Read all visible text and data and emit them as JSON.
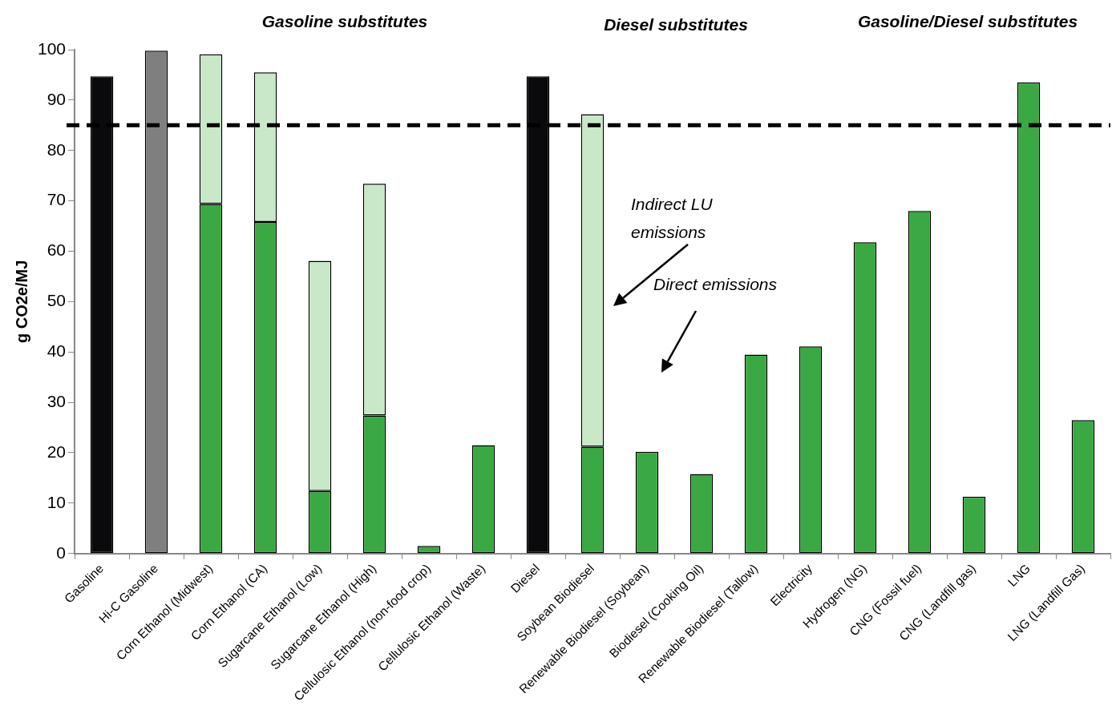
{
  "chart_data": {
    "type": "bar",
    "stacked": true,
    "ylabel": "g CO2e/MJ",
    "categories": [
      "Gasoline",
      "Hi-C Gasoline",
      "Corn Ethanol (Midwest)",
      "Corn Ethanol (CA)",
      "Sugarcane Ethanol (Low)",
      "Sugarcane Ethanol (High)",
      "Cellulosic Ethanol (non-food crop)",
      "Cellulosic Ethanol (Waste)",
      "Diesel",
      "Soybean Biodiesel",
      "Renewable Biodiesel (Soybean)",
      "Biodiesel (Cooking Oil)",
      "Renewable Biodiesel (Tallow)",
      "Electricity",
      "Hydrogen (NG)",
      "CNG (Fossil fuel)",
      "CNG (Landfill gas)",
      "LNG",
      "LNG (Landfill Gas)"
    ],
    "series": [
      {
        "colors": [
          "#0a0a0c",
          "#7f7f7f",
          "#3aa843",
          "#3aa843",
          "#3aa843",
          "#3aa843",
          "#3aa843",
          "#3aa843",
          "#0a0a0c",
          "#3aa843",
          "#3aa843",
          "#3aa843",
          "#3aa843",
          "#3aa843",
          "#3aa843",
          "#3aa843",
          "#3aa843",
          "#3aa843",
          "#3aa843"
        ],
        "values": [
          94.7,
          99.8,
          69.4,
          65.8,
          12.4,
          27.4,
          1.5,
          21.5,
          94.7,
          21.2,
          20.2,
          15.8,
          39.5,
          41.1,
          61.8,
          68.0,
          11.3,
          93.5,
          26.5
        ]
      },
      {
        "color": "#c8e8c8",
        "values": [
          null,
          null,
          29.7,
          29.7,
          45.7,
          46.0,
          null,
          null,
          null,
          66.0,
          null,
          null,
          null,
          null,
          null,
          null,
          null,
          null,
          null
        ]
      }
    ],
    "ylim": [
      0,
      100
    ],
    "yticks": [
      0,
      10,
      20,
      30,
      40,
      50,
      60,
      70,
      80,
      90,
      100
    ],
    "grid": false,
    "legend": false,
    "ref_lines": [
      {
        "axis": "y",
        "value": 85,
        "color": "#000000",
        "line_style": "dashed"
      }
    ],
    "annotations": [
      "Gasoline substitutes",
      "Diesel substitutes",
      "Gasoline/Diesel substitutes",
      "Indirect LU emissions",
      "Direct emissions"
    ]
  }
}
